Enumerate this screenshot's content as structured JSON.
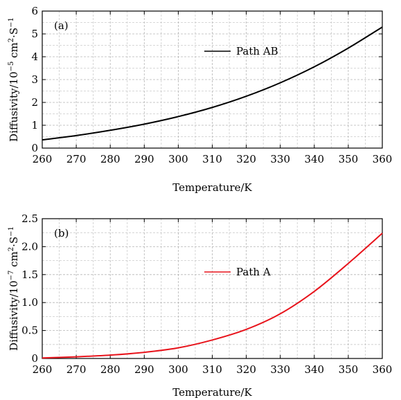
{
  "chart_data": [
    {
      "type": "line",
      "panel": "(a)",
      "xlabel": "Temperature/K",
      "ylabel": "Diffusivity/10",
      "ylabel_exponent": "−5",
      "ylabel_unit": "cm",
      "ylabel_unit_sup": "2",
      "ylabel_unit_tail": "·S",
      "ylabel_unit_tail_sup": "−1",
      "xlim": [
        260,
        360
      ],
      "ylim": [
        0,
        6
      ],
      "xticks": [
        260,
        270,
        280,
        290,
        300,
        310,
        320,
        330,
        340,
        350,
        360
      ],
      "yticks": [
        0,
        1,
        2,
        3,
        4,
        5,
        6
      ],
      "ytick_labels": [
        "0",
        "1",
        "2",
        "3",
        "4",
        "5",
        "6"
      ],
      "grid": true,
      "legend_position": "top-center",
      "series": [
        {
          "name": "Path AB",
          "color": "#000000",
          "x": [
            260,
            270,
            280,
            290,
            300,
            310,
            320,
            330,
            340,
            350,
            360
          ],
          "values": [
            0.36,
            0.55,
            0.78,
            1.05,
            1.38,
            1.78,
            2.27,
            2.86,
            3.56,
            4.38,
            5.3
          ]
        }
      ]
    },
    {
      "type": "line",
      "panel": "(b)",
      "xlabel": "Temperature/K",
      "ylabel": "Diffusivity/10",
      "ylabel_exponent": "−7",
      "ylabel_unit": "cm",
      "ylabel_unit_sup": "2",
      "ylabel_unit_tail": "·S",
      "ylabel_unit_tail_sup": "−1",
      "xlim": [
        260,
        360
      ],
      "ylim": [
        0,
        2.5
      ],
      "xticks": [
        260,
        270,
        280,
        290,
        300,
        310,
        320,
        330,
        340,
        350,
        360
      ],
      "yticks": [
        0,
        0.5,
        1.0,
        1.5,
        2.0,
        2.5
      ],
      "ytick_labels": [
        "0",
        "0.5",
        "1.0",
        "1.5",
        "2.0",
        "2.5"
      ],
      "grid": true,
      "legend_position": "center",
      "series": [
        {
          "name": "Path A",
          "color": "#e8141c",
          "x": [
            260,
            270,
            280,
            290,
            300,
            310,
            320,
            330,
            340,
            350,
            360
          ],
          "values": [
            0.01,
            0.03,
            0.06,
            0.11,
            0.19,
            0.33,
            0.52,
            0.8,
            1.2,
            1.7,
            2.24
          ]
        }
      ]
    }
  ]
}
